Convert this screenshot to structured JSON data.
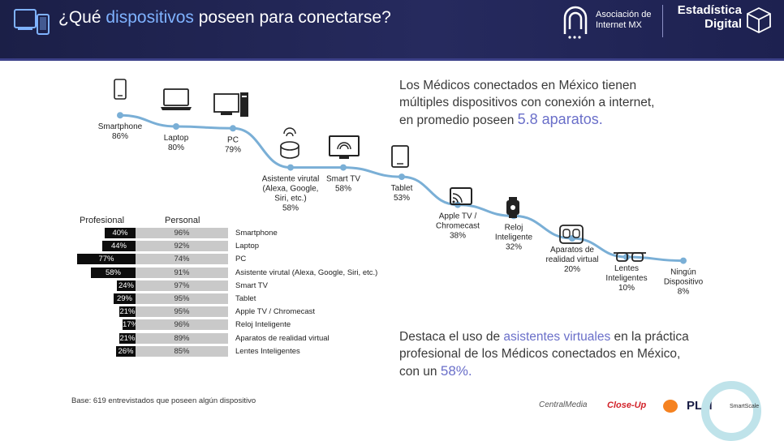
{
  "header": {
    "title_prefix": "¿Qué ",
    "title_accent": "dispositivos",
    "title_suffix": " poseen para conectarse?",
    "logo_asociacion": "Asociación de",
    "logo_internet": "Internet MX",
    "logo_estadistica": "Estadística",
    "logo_digital": "Digital"
  },
  "summary": {
    "line1": "Los Médicos conectados en México tienen",
    "line2": "múltiples dispositivos con conexión a internet,",
    "line3": "en promedio poseen",
    "highlight": "5.8 aparatos."
  },
  "highlight2": {
    "line1a": "Destaca el uso de ",
    "accent": "asistentes virtuales",
    "line1b": " en la práctica",
    "line2": "profesional de los Médicos conectados en México,",
    "line3a": "con un ",
    "pct": "58%."
  },
  "table": {
    "header_profesional": "Profesional",
    "header_personal": "Personal",
    "rows": [
      {
        "label": "Smartphone",
        "profesional": "40%",
        "personal": "96%",
        "pro_value": 40
      },
      {
        "label": "Laptop",
        "profesional": "44%",
        "personal": "92%",
        "pro_value": 44
      },
      {
        "label": "PC",
        "profesional": "77%",
        "personal": "74%",
        "pro_value": 77
      },
      {
        "label": "Asistente virutal (Alexa, Google, Siri, etc.)",
        "profesional": "58%",
        "personal": "91%",
        "pro_value": 58
      },
      {
        "label": "Smart TV",
        "profesional": "24%",
        "personal": "97%",
        "pro_value": 24
      },
      {
        "label": "Tablet",
        "profesional": "29%",
        "personal": "95%",
        "pro_value": 29
      },
      {
        "label": "Apple TV / Chromecast",
        "profesional": "21%",
        "personal": "95%",
        "pro_value": 21
      },
      {
        "label": "Reloj Inteligente",
        "profesional": "17%",
        "personal": "96%",
        "pro_value": 17
      },
      {
        "label": "Aparatos de realidad virtual",
        "profesional": "21%",
        "personal": "89%",
        "pro_value": 21
      },
      {
        "label": "Lentes Inteligentes",
        "profesional": "26%",
        "personal": "85%",
        "pro_value": 26
      }
    ]
  },
  "base_note": "Base: 619 entrevistados que poseen algún dispositivo",
  "footer": {
    "centralmedia": "CentralMedia",
    "closeup": "Close-Up",
    "plm": "PLM",
    "smartscale": "SmartScale"
  },
  "colors": {
    "line": "#7aafd6",
    "accent": "#6a6fc9",
    "header_bg": "#22265a",
    "bar_pro": "#0d0d0d",
    "bar_per": "#c9c9c9"
  },
  "chart_data": [
    {
      "type": "line",
      "categories": [
        "Smartphone",
        "Laptop",
        "PC",
        "Asistente virutal (Alexa, Google, Siri, etc.)",
        "Smart TV",
        "Tablet",
        "Apple TV / Chromecast",
        "Reloj Inteligente",
        "Aparatos de realidad virtual",
        "Lentes Inteligentes",
        "Ningún Dispositivo"
      ],
      "values": [
        86,
        80,
        79,
        58,
        58,
        53,
        38,
        32,
        20,
        10,
        8
      ],
      "labels": [
        "Smartphone\n86%",
        "Laptop\n80%",
        "PC\n79%",
        "Asistente virutal\n(Alexa, Google,\nSiri, etc.)\n58%",
        "Smart TV\n58%",
        "Tablet\n53%",
        "Apple TV /\nChromecast\n38%",
        "Reloj\nInteligente\n32%",
        "Aparatos de\nrealidad virtual\n20%",
        "Lentes\nInteligentes\n10%",
        "Ningún\nDispositivo\n8%"
      ],
      "icons": [
        "smartphone-icon",
        "laptop-icon",
        "pc-icon",
        "smart-speaker-icon",
        "smart-tv-icon",
        "tablet-icon",
        "chromecast-icon",
        "smartwatch-icon",
        "vr-headset-icon",
        "smart-glasses-icon",
        ""
      ],
      "ylim": [
        0,
        100
      ],
      "grid": false
    },
    {
      "type": "bar",
      "orientation": "horizontal",
      "categories": [
        "Smartphone",
        "Laptop",
        "PC",
        "Asistente virutal (Alexa, Google, Siri, etc.)",
        "Smart TV",
        "Tablet",
        "Apple TV / Chromecast",
        "Reloj Inteligente",
        "Aparatos de realidad virtual",
        "Lentes Inteligentes"
      ],
      "series": [
        {
          "name": "Profesional",
          "values": [
            40,
            44,
            77,
            58,
            24,
            29,
            21,
            17,
            21,
            26
          ]
        },
        {
          "name": "Personal",
          "values": [
            96,
            92,
            74,
            91,
            97,
            95,
            95,
            96,
            89,
            85
          ]
        }
      ]
    }
  ]
}
